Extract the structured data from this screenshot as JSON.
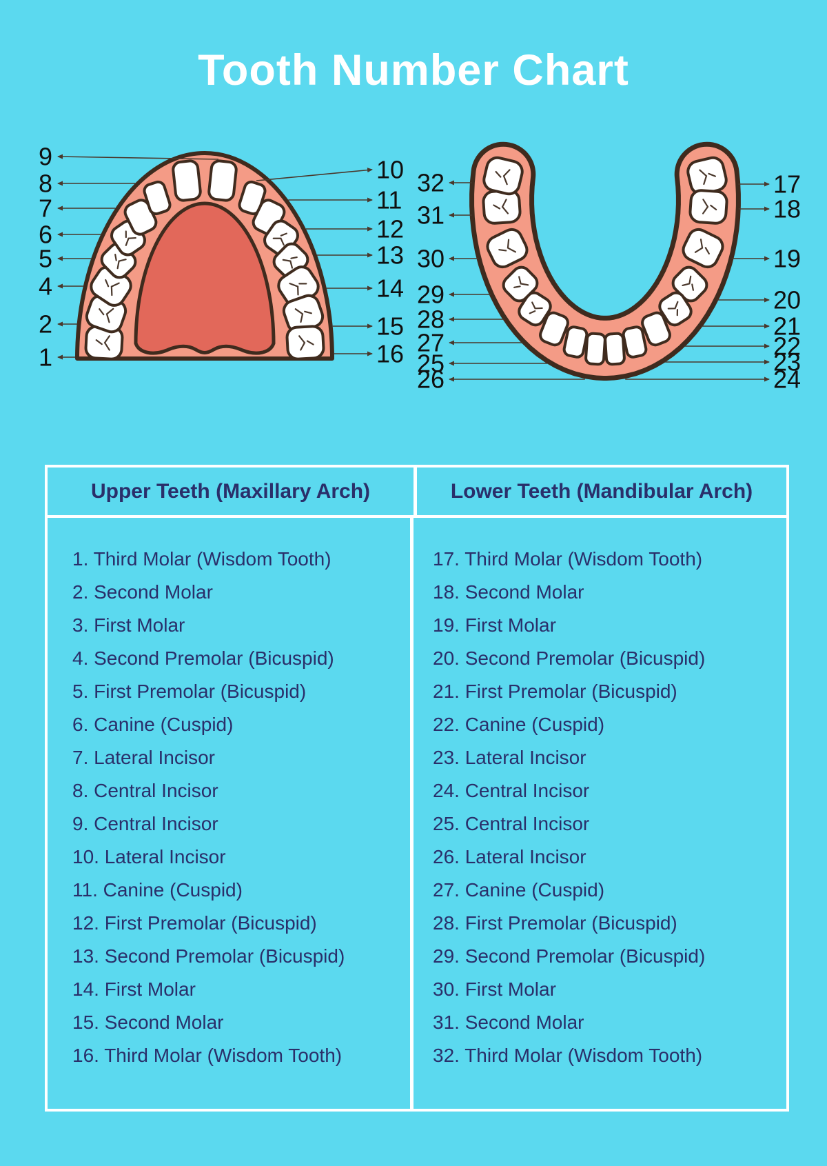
{
  "title": "Tooth Number Chart",
  "colors": {
    "background": "#5bd9ef",
    "title_text": "#ffffff",
    "table_text": "#2a2f6a",
    "table_border": "#ffffff",
    "gum": "#f49b86",
    "palate": "#e2685a",
    "tooth_fill": "#ffffff",
    "outline": "#3f2b1e",
    "label_text": "#101010",
    "leader_line": "#4a382c"
  },
  "upper_diagram": {
    "name": "Upper Teeth (Maxillary Arch) occlusal view",
    "left_labels": [
      "9",
      "8",
      "7",
      "6",
      "5",
      "4",
      "2",
      "1"
    ],
    "right_labels": [
      "10",
      "11",
      "12",
      "13",
      "14",
      "15",
      "16"
    ]
  },
  "lower_diagram": {
    "name": "Lower Teeth (Mandibular Arch) occlusal view",
    "left_labels": [
      "32",
      "31",
      "30",
      "29",
      "28",
      "27",
      "25",
      "26"
    ],
    "right_labels": [
      "17",
      "18",
      "19",
      "20",
      "21",
      "22",
      "23",
      "24"
    ]
  },
  "table": {
    "headers": [
      "Upper Teeth (Maxillary Arch)",
      "Lower Teeth (Mandibular Arch)"
    ],
    "upper_rows": [
      "1. Third Molar (Wisdom Tooth)",
      "2. Second Molar",
      "3. First Molar",
      "4. Second Premolar (Bicuspid)",
      "5. First Premolar (Bicuspid)",
      "6. Canine (Cuspid)",
      "7. Lateral Incisor",
      "8. Central Incisor",
      "9. Central Incisor",
      "10. Lateral Incisor",
      "11. Canine (Cuspid)",
      "12. First Premolar (Bicuspid)",
      "13. Second Premolar (Bicuspid)",
      "14. First Molar",
      "15. Second Molar",
      "16. Third Molar (Wisdom Tooth)"
    ],
    "lower_rows": [
      "17. Third Molar (Wisdom Tooth)",
      "18. Second Molar",
      "19. First Molar",
      "20. Second Premolar (Bicuspid)",
      "21. First Premolar (Bicuspid)",
      "22. Canine (Cuspid)",
      "23. Lateral Incisor",
      "24. Central Incisor",
      "25. Central Incisor",
      "26. Lateral Incisor",
      "27. Canine (Cuspid)",
      "28. First Premolar (Bicuspid)",
      "29. Second Premolar (Bicuspid)",
      "30. First Molar",
      "31. Second Molar",
      "32. Third Molar (Wisdom Tooth)"
    ]
  }
}
